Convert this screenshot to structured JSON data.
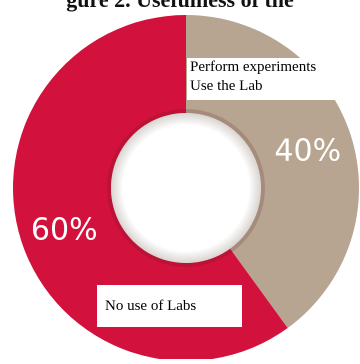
{
  "chart_data": {
    "type": "pie",
    "title": "",
    "title_fragment": "gure 2. Usefulness of the",
    "slices": [
      {
        "label": "Perform experiments Use the Lab",
        "value": 40,
        "value_label": "40%",
        "color": "#b7a591"
      },
      {
        "label": "No use of Labs",
        "value": 60,
        "value_label": "60%",
        "color": "#d2123c"
      }
    ],
    "callouts": {
      "top_line1": "Perform experiments",
      "top_line2": "Use the Lab",
      "bottom": "No use of Labs"
    },
    "style": "donut"
  }
}
